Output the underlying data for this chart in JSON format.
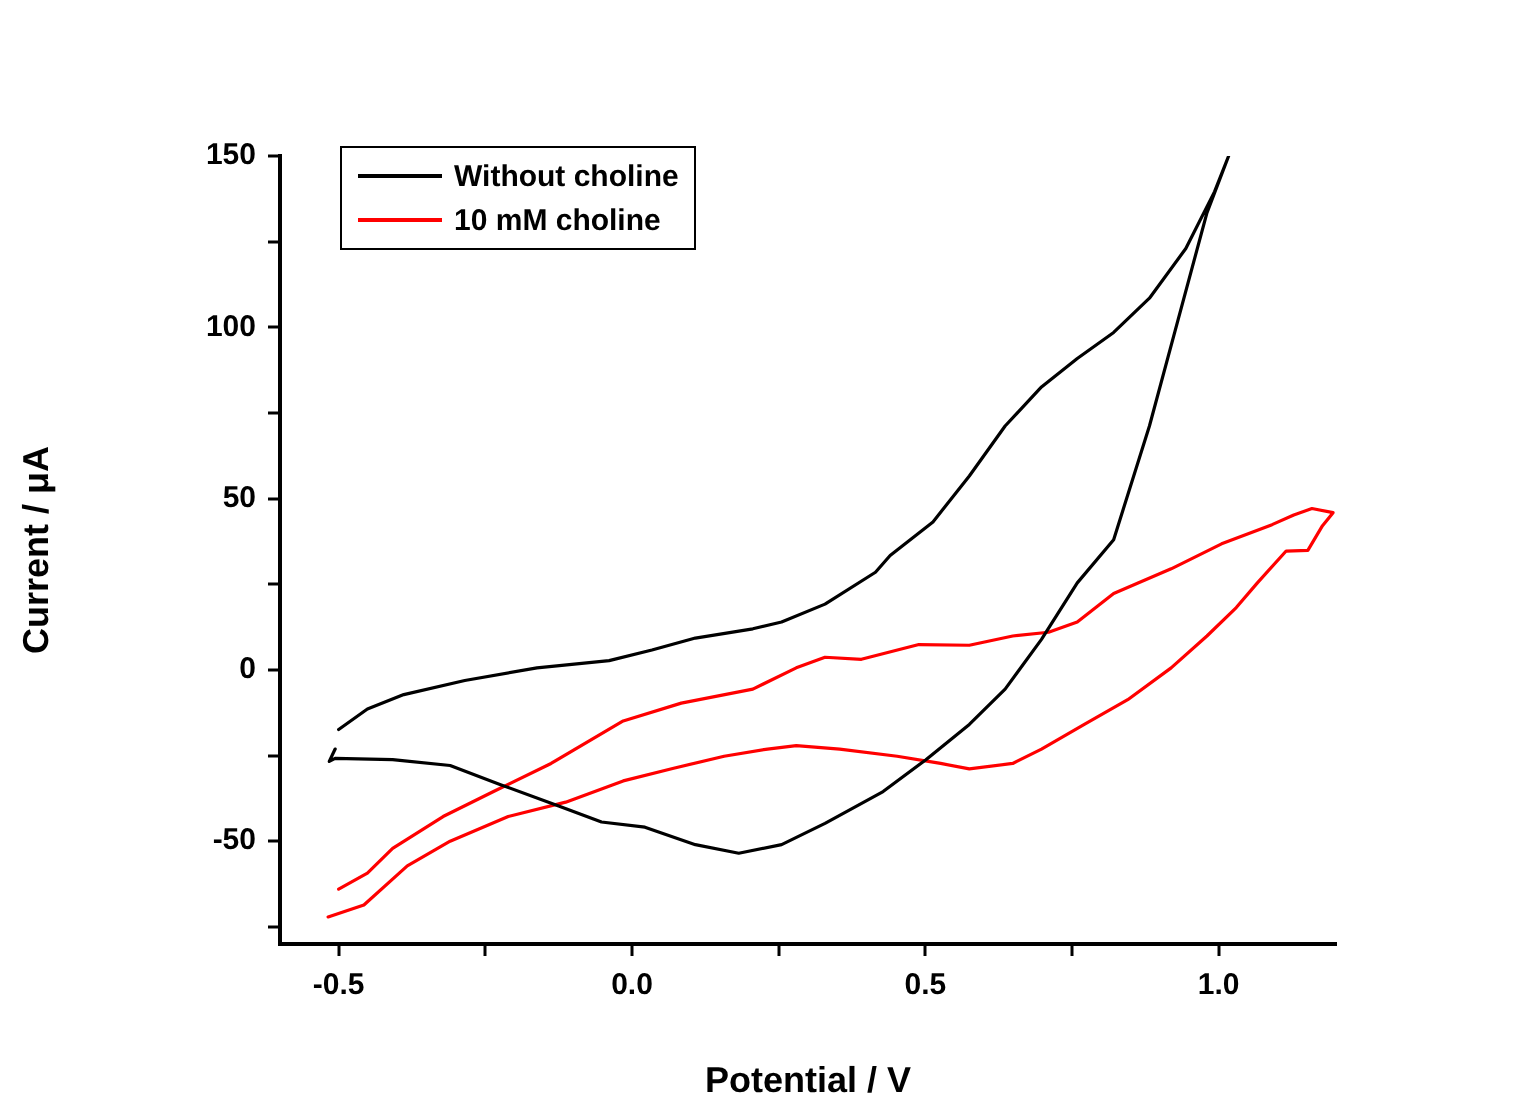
{
  "chart_data": {
    "type": "line",
    "xlabel": "Potential / V",
    "ylabel": "Current / μA",
    "xlim": [
      -0.6,
      1.2
    ],
    "ylim": [
      -80,
      150
    ],
    "xticks": [
      {
        "value": -0.5,
        "label": "-0.5"
      },
      {
        "value": -0.25,
        "label": null
      },
      {
        "value": 0,
        "label": "0.0"
      },
      {
        "value": 0.25,
        "label": null
      },
      {
        "value": 0.5,
        "label": "0.5"
      },
      {
        "value": 0.75,
        "label": null
      },
      {
        "value": 1,
        "label": "1.0"
      }
    ],
    "yticks": [
      {
        "value": -75,
        "label": null
      },
      -50,
      {
        "value": -25,
        "label": null
      },
      0,
      {
        "value": 25,
        "label": null
      },
      50,
      {
        "value": 75,
        "label": null
      },
      100,
      {
        "value": 125,
        "label": null
      },
      150
    ],
    "legend": "top left",
    "marker": "none",
    "line_style": "solid",
    "grid": false,
    "series": [
      {
        "name": "Without choline",
        "color": "#000000",
        "x": [
          -0.5,
          -0.451,
          -0.389,
          -0.285,
          -0.162,
          -0.039,
          0.034,
          0.108,
          0.206,
          0.255,
          0.329,
          0.415,
          0.44,
          0.513,
          0.575,
          0.636,
          0.698,
          0.759,
          0.821,
          0.882,
          0.944,
          0.993,
          1.017,
          0.98,
          0.931,
          0.882,
          0.821,
          0.759,
          0.698,
          0.636,
          0.575,
          0.501,
          0.428,
          0.329,
          0.255,
          0.182,
          0.108,
          0.022,
          -0.052,
          -0.125,
          -0.224,
          -0.31,
          -0.408,
          -0.506,
          -0.516,
          -0.506
        ],
        "values": [
          -17.4,
          -11.4,
          -7.2,
          -3.1,
          0.6,
          2.7,
          5.8,
          9.3,
          12,
          14,
          19.2,
          28.5,
          33.4,
          43.2,
          56.6,
          71.2,
          82.6,
          90.9,
          98.5,
          108.5,
          123,
          139.6,
          150,
          133.4,
          102.3,
          71.2,
          38,
          25.4,
          8.9,
          -5.6,
          -15.9,
          -26.2,
          -35.5,
          -44.8,
          -51,
          -53.5,
          -51,
          -45.9,
          -44.4,
          -39.7,
          -33.5,
          -27.9,
          -26.2,
          -25.8,
          -26.7,
          -23.1
        ]
      },
      {
        "name": "10 mM choline",
        "color": "#ff0000",
        "x": [
          -0.5,
          -0.451,
          -0.408,
          -0.322,
          -0.236,
          -0.138,
          -0.015,
          0.084,
          0.206,
          0.28,
          0.329,
          0.391,
          0.489,
          0.575,
          0.649,
          0.71,
          0.759,
          0.821,
          0.919,
          1.005,
          1.091,
          1.128,
          1.159,
          1.195,
          1.177,
          1.152,
          1.115,
          1.066,
          1.03,
          0.98,
          0.919,
          0.845,
          0.771,
          0.698,
          0.649,
          0.575,
          0.526,
          0.452,
          0.354,
          0.28,
          0.231,
          0.157,
          0.071,
          -0.015,
          -0.113,
          -0.211,
          -0.31,
          -0.383,
          -0.457,
          -0.518
        ],
        "values": [
          -64,
          -59.3,
          -52.1,
          -42.8,
          -35.5,
          -27.3,
          -14.9,
          -9.7,
          -5.6,
          0.6,
          3.7,
          3.1,
          7.4,
          7.2,
          9.9,
          11,
          14,
          22.3,
          29.5,
          36.8,
          42.4,
          45.2,
          47.1,
          45.9,
          42.1,
          34.9,
          34.7,
          25.4,
          18.2,
          9.9,
          0.6,
          -8.7,
          -15.9,
          -23.1,
          -27.3,
          -28.9,
          -27.3,
          -25.2,
          -23.1,
          -22.1,
          -23.1,
          -25.2,
          -28.7,
          -32.4,
          -38.6,
          -42.8,
          -50,
          -57.2,
          -68.6,
          -72.1
        ]
      }
    ]
  }
}
